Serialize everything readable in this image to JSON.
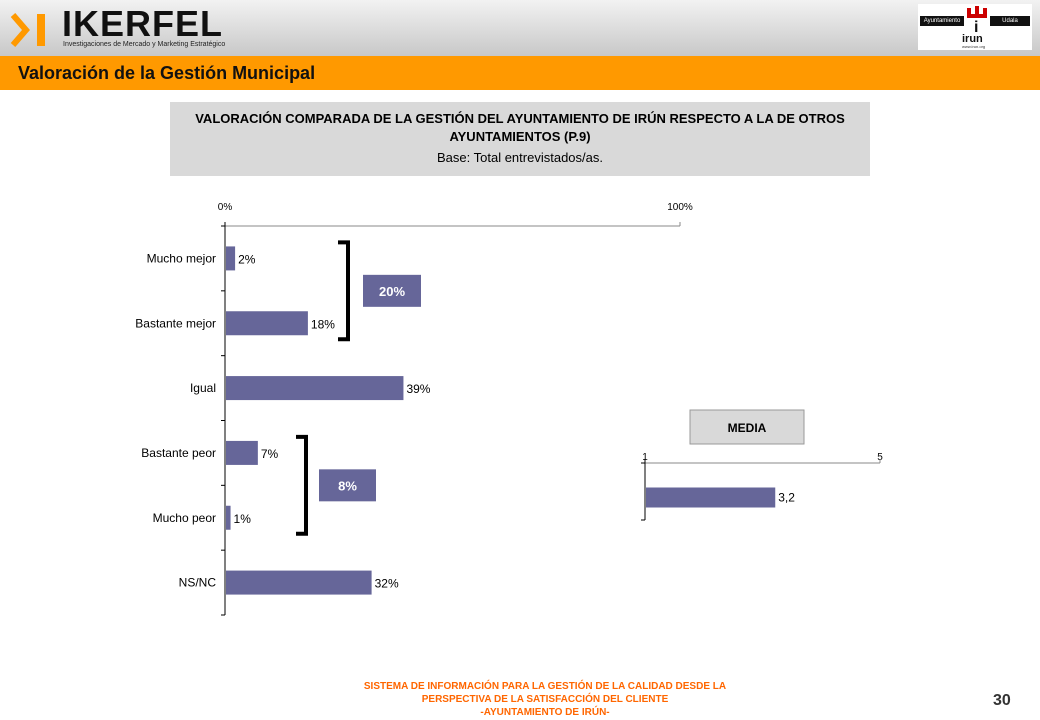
{
  "brand": {
    "name": "IKERFEL",
    "tagline": "Investigaciones de Mercado y Marketing Estratégico"
  },
  "partner_logo": {
    "left_label": "Ayuntamiento",
    "right_label": "Udala",
    "name": "irun",
    "url": "www.irun.org"
  },
  "section_title": "Valoración de la Gestión Municipal",
  "header": {
    "title": "VALORACIÓN COMPARADA DE LA GESTIÓN DEL AYUNTAMIENTO DE IRÚN RESPECTO A LA DE OTROS AYUNTAMIENTOS (P.9)",
    "base": "Base: Total entrevistados/as."
  },
  "colors": {
    "bar": "#666699",
    "accent": "#ff9900",
    "footer": "#ff6600"
  },
  "chart_data": [
    {
      "type": "bar",
      "orientation": "horizontal",
      "categories": [
        "Mucho mejor",
        "Bastante mejor",
        "Igual",
        "Bastante peor",
        "Mucho peor",
        "NS/NC"
      ],
      "values": [
        2,
        18,
        39,
        7,
        1,
        32
      ],
      "value_labels": [
        "2%",
        "18%",
        "39%",
        "7%",
        "1%",
        "32%"
      ],
      "xlim": [
        0,
        100
      ],
      "x_ticks": [
        "0%",
        "100%"
      ],
      "annotations": [
        {
          "group": [
            "Mucho mejor",
            "Bastante mejor"
          ],
          "label": "20%"
        },
        {
          "group": [
            "Bastante peor",
            "Mucho peor"
          ],
          "label": "8%"
        }
      ]
    },
    {
      "type": "bar",
      "orientation": "horizontal",
      "title": "MEDIA",
      "values": [
        3.2
      ],
      "value_labels": [
        "3,2"
      ],
      "xlim": [
        1,
        5
      ],
      "x_ticks": [
        "1",
        "5"
      ]
    }
  ],
  "footer": {
    "lines": [
      "SISTEMA DE INFORMACIÓN PARA LA GESTIÓN DE LA CALIDAD DESDE LA",
      "PERSPECTIVA DE LA SATISFACCIÓN DEL CLIENTE",
      "-AYUNTAMIENTO DE IRÚN-"
    ],
    "page": "30"
  }
}
